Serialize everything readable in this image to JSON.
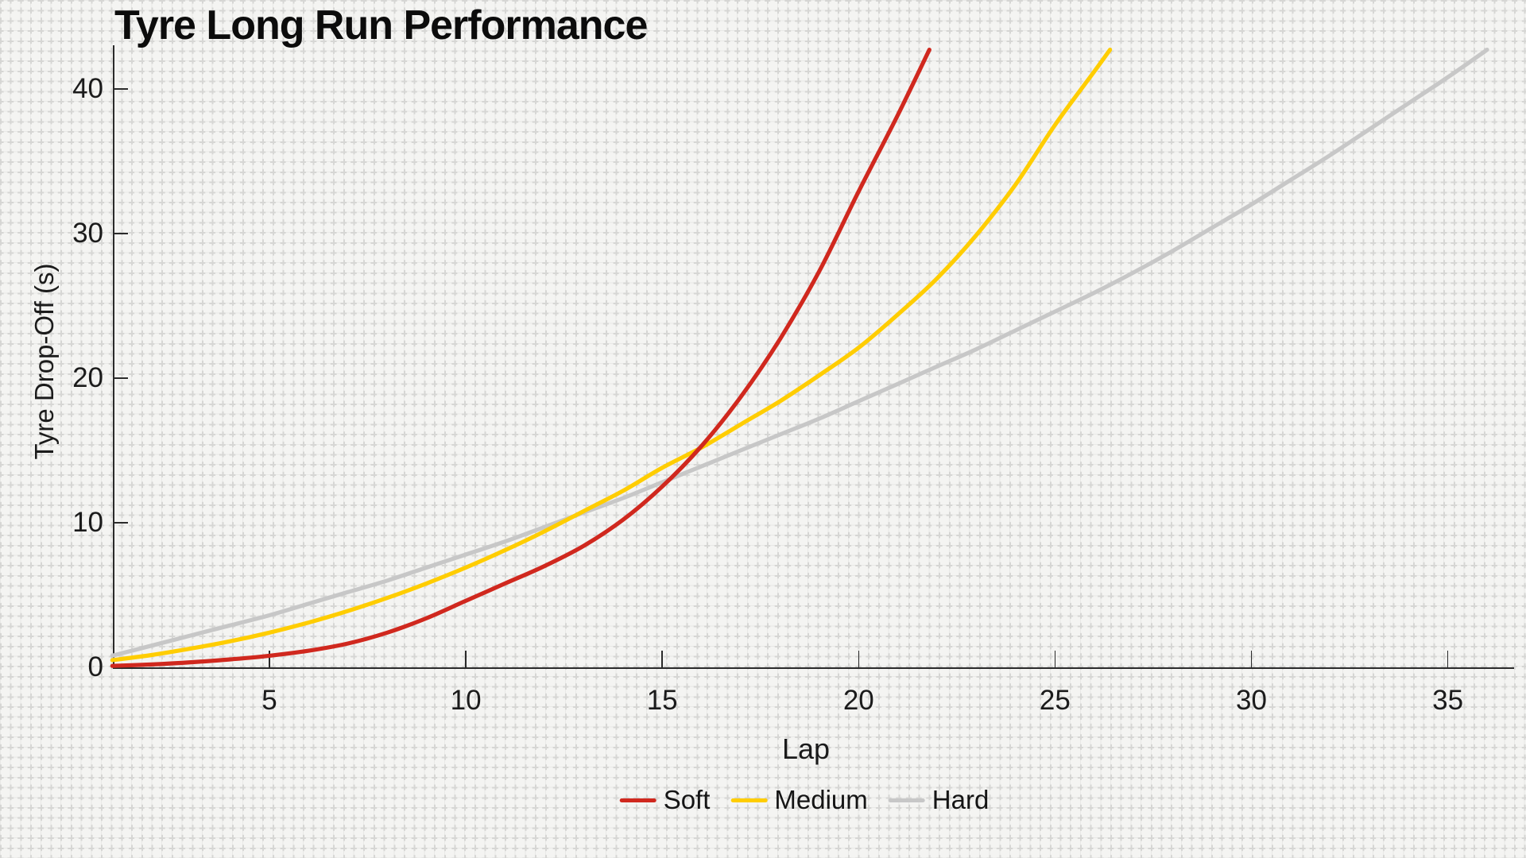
{
  "title": "Tyre Long Run Performance",
  "x_axis": {
    "label": "Lap"
  },
  "y_axis": {
    "label": "Tyre Drop-Off (s)"
  },
  "legend": {
    "position": "bottom-center"
  },
  "colors": {
    "soft": "#d0281e",
    "medium": "#ffcd00",
    "hard": "#c7c7c7",
    "text": "#1a1a1a",
    "spine": "#2a2a2a",
    "background": "#f4f4f2"
  },
  "chart_data": {
    "type": "line",
    "title": "Tyre Long Run Performance",
    "xlabel": "Lap",
    "ylabel": "Tyre Drop-Off (s)",
    "xlim": [
      1,
      36.7
    ],
    "ylim": [
      0,
      43
    ],
    "x_ticks": [
      5,
      10,
      15,
      20,
      25,
      30,
      35
    ],
    "y_ticks": [
      0,
      10,
      20,
      30,
      40
    ],
    "grid": "graph-paper cross pattern over whole figure, no major gridlines",
    "legend_position": "bottom-center",
    "series": [
      {
        "name": "Soft",
        "color": "#d0281e",
        "points": [
          [
            1,
            0.1
          ],
          [
            2,
            0.2
          ],
          [
            3,
            0.35
          ],
          [
            4,
            0.55
          ],
          [
            5,
            0.8
          ],
          [
            6,
            1.15
          ],
          [
            7,
            1.65
          ],
          [
            8,
            2.4
          ],
          [
            9,
            3.4
          ],
          [
            10,
            4.6
          ],
          [
            11,
            5.8
          ],
          [
            12,
            7.0
          ],
          [
            13,
            8.4
          ],
          [
            14,
            10.2
          ],
          [
            15,
            12.5
          ],
          [
            16,
            15.3
          ],
          [
            17,
            18.7
          ],
          [
            18,
            22.7
          ],
          [
            19,
            27.4
          ],
          [
            20,
            32.9
          ],
          [
            21,
            38.2
          ],
          [
            21.8,
            42.7
          ]
        ]
      },
      {
        "name": "Medium",
        "color": "#ffcd00",
        "points": [
          [
            1,
            0.5
          ],
          [
            2,
            0.85
          ],
          [
            3,
            1.3
          ],
          [
            4,
            1.8
          ],
          [
            5,
            2.4
          ],
          [
            6,
            3.1
          ],
          [
            7,
            3.9
          ],
          [
            8,
            4.8
          ],
          [
            9,
            5.8
          ],
          [
            10,
            6.9
          ],
          [
            11,
            8.1
          ],
          [
            12,
            9.4
          ],
          [
            13,
            10.8
          ],
          [
            14,
            12.2
          ],
          [
            15,
            13.8
          ],
          [
            16,
            15.2
          ],
          [
            17,
            16.8
          ],
          [
            18,
            18.4
          ],
          [
            19,
            20.2
          ],
          [
            20,
            22.1
          ],
          [
            21,
            24.4
          ],
          [
            22,
            26.9
          ],
          [
            23,
            29.9
          ],
          [
            24,
            33.4
          ],
          [
            25,
            37.5
          ],
          [
            26,
            41.2
          ],
          [
            26.4,
            42.7
          ]
        ]
      },
      {
        "name": "Hard",
        "color": "#c7c7c7",
        "points": [
          [
            1,
            0.8
          ],
          [
            2,
            1.5
          ],
          [
            3,
            2.2
          ],
          [
            4,
            2.9
          ],
          [
            5,
            3.6
          ],
          [
            6,
            4.4
          ],
          [
            7,
            5.2
          ],
          [
            8,
            6.0
          ],
          [
            9,
            6.9
          ],
          [
            10,
            7.8
          ],
          [
            11,
            8.7
          ],
          [
            12,
            9.7
          ],
          [
            13,
            10.7
          ],
          [
            14,
            11.7
          ],
          [
            15,
            12.8
          ],
          [
            16,
            13.9
          ],
          [
            17,
            15.0
          ],
          [
            18,
            16.1
          ],
          [
            19,
            17.2
          ],
          [
            20,
            18.4
          ],
          [
            21,
            19.6
          ],
          [
            22,
            20.8
          ],
          [
            23,
            22.0
          ],
          [
            24,
            23.3
          ],
          [
            25,
            24.6
          ],
          [
            26,
            25.9
          ],
          [
            27,
            27.3
          ],
          [
            28,
            28.8
          ],
          [
            29,
            30.4
          ],
          [
            30,
            32.0
          ],
          [
            31,
            33.7
          ],
          [
            32,
            35.4
          ],
          [
            33,
            37.2
          ],
          [
            34,
            39.0
          ],
          [
            35,
            40.8
          ],
          [
            36,
            42.7
          ]
        ]
      }
    ]
  }
}
